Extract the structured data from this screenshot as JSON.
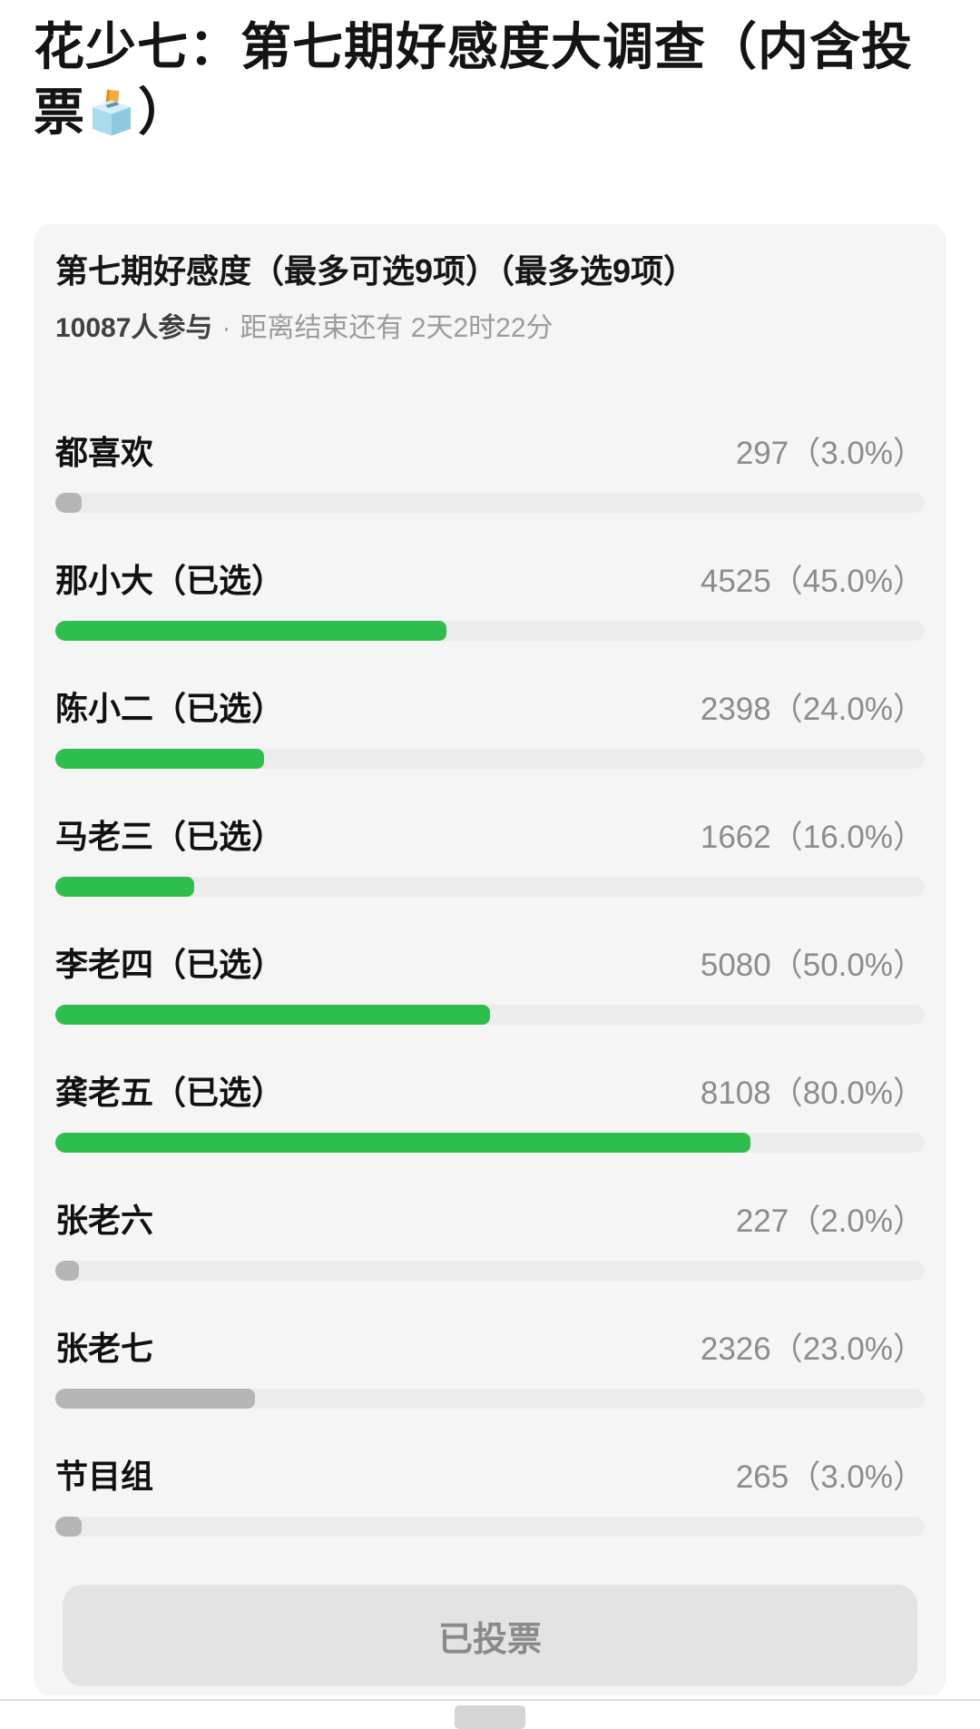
{
  "header": {
    "title_line1": "花少七：第七期好感度大调查（内含投",
    "title_line2_before_emoji": "票",
    "title_line2_after_emoji": "）"
  },
  "poll": {
    "question": "第七期好感度（最多可选9项）（最多选9项）",
    "participants": "10087人参与",
    "dot": "·",
    "countdown": "距离结束还有 2天2时22分",
    "vote_button_label": "已投票",
    "options": [
      {
        "label": "都喜欢",
        "tag": "",
        "votes": "297",
        "percent_text": "（3.0%）",
        "percent": 3.0,
        "selected": false
      },
      {
        "label": "那小大",
        "tag": "（已选）",
        "votes": "4525",
        "percent_text": "（45.0%）",
        "percent": 45.0,
        "selected": true
      },
      {
        "label": "陈小二",
        "tag": "（已选）",
        "votes": "2398",
        "percent_text": "（24.0%）",
        "percent": 24.0,
        "selected": true
      },
      {
        "label": "马老三",
        "tag": "（已选）",
        "votes": "1662",
        "percent_text": "（16.0%）",
        "percent": 16.0,
        "selected": true
      },
      {
        "label": "李老四",
        "tag": "（已选）",
        "votes": "5080",
        "percent_text": "（50.0%）",
        "percent": 50.0,
        "selected": true
      },
      {
        "label": "龚老五",
        "tag": "（已选）",
        "votes": "8108",
        "percent_text": "（80.0%）",
        "percent": 80.0,
        "selected": true
      },
      {
        "label": "张老六",
        "tag": "",
        "votes": "227",
        "percent_text": "（2.0%）",
        "percent": 2.0,
        "selected": false
      },
      {
        "label": "张老七",
        "tag": "",
        "votes": "2326",
        "percent_text": "（23.0%）",
        "percent": 23.0,
        "selected": false
      },
      {
        "label": "节目组",
        "tag": "",
        "votes": "265",
        "percent_text": "（3.0%）",
        "percent": 3.0,
        "selected": false
      }
    ]
  },
  "colors": {
    "bar_selected": "#2dbe4e",
    "bar_unselected": "#b5b5b5",
    "bar_track": "#ececec",
    "card_bg": "#f5f5f5",
    "count_text": "#8c8c8c",
    "button_bg": "#e3e3e3",
    "button_text": "#8a8a8a"
  }
}
